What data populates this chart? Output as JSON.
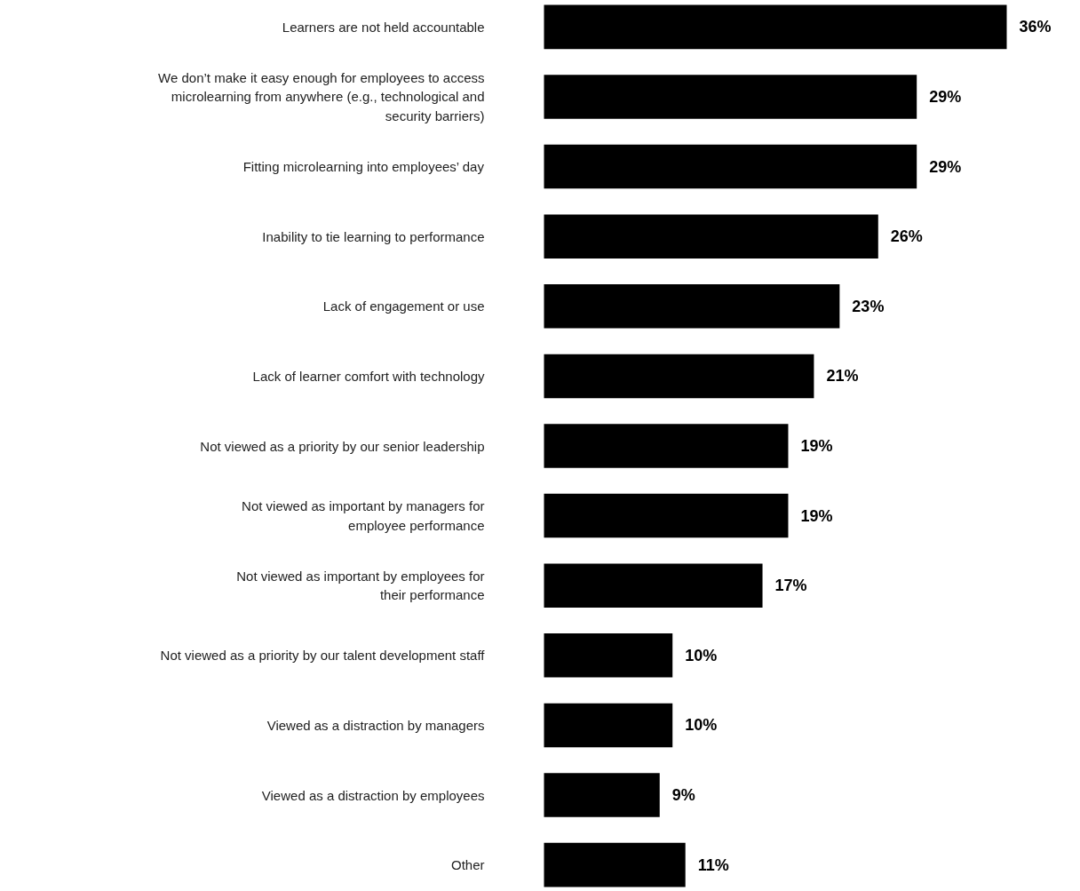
{
  "chart_data": {
    "type": "bar",
    "orientation": "horizontal",
    "color": "#000000",
    "categories": [
      "Learners are not held accountable",
      "We don’t make it easy enough for employees to access\nmicrolearning from anywhere (e.g., technological and\nsecurity barriers)",
      "Fitting microlearning into employees’ day",
      "Inability to tie learning to performance",
      "Lack of engagement or use",
      "Lack of learner comfort with technology",
      "Not viewed as a priority by our senior leadership",
      "Not viewed as important by managers for\nemployee performance",
      "Not viewed as important by employees for\ntheir performance",
      "Not viewed as a priority by our talent development staff",
      "Viewed as a distraction by managers",
      "Viewed as a distraction by employees",
      "Other"
    ],
    "values": [
      36,
      29,
      29,
      26,
      23,
      21,
      19,
      19,
      17,
      10,
      10,
      9,
      11
    ],
    "value_labels": [
      "36%",
      "29%",
      "29%",
      "26%",
      "23%",
      "21%",
      "19%",
      "19%",
      "17%",
      "10%",
      "10%",
      "9%",
      "11%"
    ]
  }
}
